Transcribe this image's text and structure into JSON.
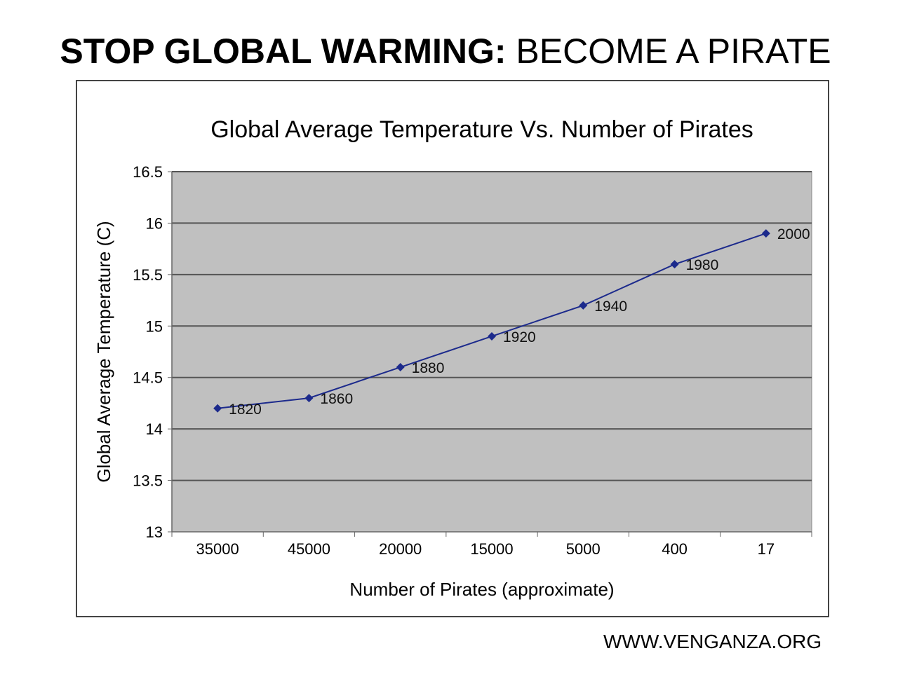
{
  "headline": {
    "bold": "STOP GLOBAL WARMING:",
    "rest": " BECOME A PIRATE"
  },
  "footer": "WWW.VENGANZA.ORG",
  "colors": {
    "plot_bg": "#c0c0c0",
    "line": "#1c2a8c",
    "grid": "#555555"
  },
  "chart_data": {
    "type": "line",
    "title": "Global Average Temperature Vs. Number of Pirates",
    "xlabel": "Number of Pirates (approximate)",
    "ylabel": "Global Average Temperature (C)",
    "categories": [
      "35000",
      "45000",
      "20000",
      "15000",
      "5000",
      "400",
      "17"
    ],
    "ylim": [
      13,
      16.5
    ],
    "yticks": [
      "13",
      "13.5",
      "14",
      "14.5",
      "15",
      "15.5",
      "16",
      "16.5"
    ],
    "grid": true,
    "series": [
      {
        "values": [
          14.2,
          14.3,
          14.6,
          14.9,
          15.2,
          15.6,
          15.9
        ],
        "point_labels": [
          "1820",
          "1860",
          "1880",
          "1920",
          "1940",
          "1980",
          "2000"
        ]
      }
    ]
  }
}
